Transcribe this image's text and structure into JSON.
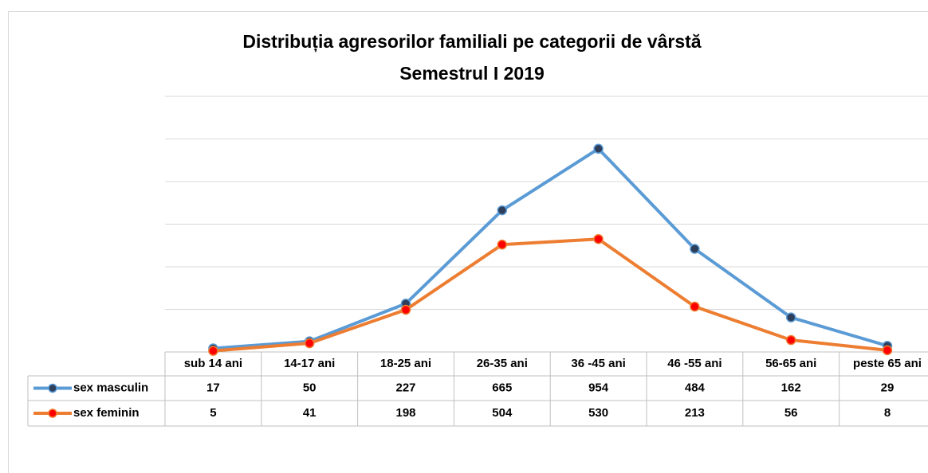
{
  "chart_data": {
    "type": "line",
    "title": "Distribuția agresorilor familiali pe categorii de vârstă",
    "subtitle": "Semestrul I 2019",
    "categories": [
      "sub 14 ani",
      "14-17 ani",
      "18-25 ani",
      "26-35 ani",
      "36 -45 ani",
      "46 -55 ani",
      "56-65 ani",
      "peste 65 ani"
    ],
    "series": [
      {
        "name": "sex masculin",
        "color": "#5b9bd5",
        "marker_color": "#2e3f5c",
        "values": [
          17,
          50,
          227,
          665,
          954,
          484,
          162,
          29
        ]
      },
      {
        "name": "sex feminin",
        "color": "#ed7d31",
        "marker_color": "#ff0000",
        "values": [
          5,
          41,
          198,
          504,
          530,
          213,
          56,
          8
        ]
      }
    ],
    "ylim": [
      0,
      1200
    ],
    "yticks": [
      0,
      200,
      400,
      600,
      800,
      1000,
      1200
    ],
    "grid": true
  }
}
